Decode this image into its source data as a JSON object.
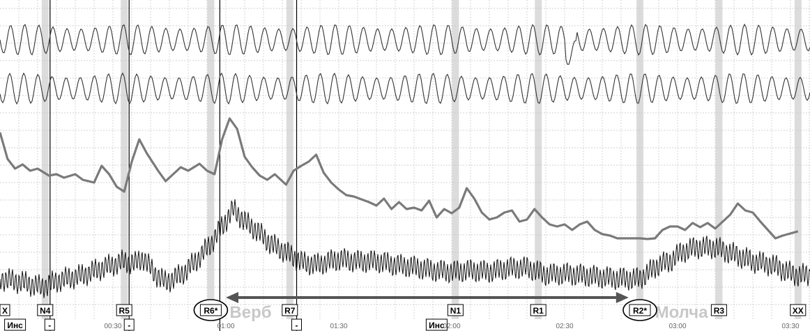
{
  "chart_data": {
    "type": "line",
    "title": "",
    "xlabel": "",
    "ylabel": "",
    "x_range_seconds": [
      0,
      212
    ],
    "time_ticks": [
      "00:30",
      "01:00",
      "01:30",
      "02:00",
      "02:30",
      "03:00",
      "03:30"
    ],
    "time_tick_seconds": [
      30,
      60,
      90,
      120,
      150,
      180,
      210
    ],
    "grid": true,
    "stimuli": [
      {
        "label": "X",
        "t": -1
      },
      {
        "label": "N4",
        "t": 12
      },
      {
        "label": "R5",
        "t": 33
      },
      {
        "label": "R6*",
        "t": 56,
        "circled": true
      },
      {
        "label": "R7",
        "t": 77
      },
      {
        "label": "N1",
        "t": 121
      },
      {
        "label": "R1",
        "t": 143
      },
      {
        "label": "R2*",
        "t": 170,
        "circled": true
      },
      {
        "label": "R3",
        "t": 191
      },
      {
        "label": "XX",
        "t": 212
      }
    ],
    "marker_lines_seconds": [
      13.3,
      34.3,
      58.4,
      78.8
    ],
    "bottom_marks": [
      {
        "label": "Инс",
        "t": 4
      },
      {
        "label": "-",
        "t": 13.2
      },
      {
        "label": "-",
        "t": 34.3
      },
      {
        "label": "-",
        "t": 78.8
      },
      {
        "label": "Инс",
        "t": 116
      }
    ],
    "phases": [
      {
        "label": "Верб",
        "t": 61
      },
      {
        "label": "Молча",
        "t": 174
      }
    ],
    "arrow_seconds": [
      60,
      167
    ],
    "channels": [
      {
        "name": "",
        "kind": "respiration-upper",
        "cycles_per_min": 16
      },
      {
        "name": "",
        "kind": "respiration-lower",
        "cycles_per_min": 16
      },
      {
        "name": "",
        "kind": "electrodermal",
        "points": [
          [
            0,
            190
          ],
          [
            2,
            228
          ],
          [
            4,
            242
          ],
          [
            6,
            236
          ],
          [
            8,
            245
          ],
          [
            10,
            242
          ],
          [
            13,
            252
          ],
          [
            15,
            250
          ],
          [
            17,
            255
          ],
          [
            20,
            250
          ],
          [
            22,
            258
          ],
          [
            25,
            262
          ],
          [
            27,
            238
          ],
          [
            29,
            250
          ],
          [
            31,
            268
          ],
          [
            33,
            275
          ],
          [
            35,
            232
          ],
          [
            37,
            200
          ],
          [
            39,
            220
          ],
          [
            42,
            245
          ],
          [
            44,
            260
          ],
          [
            46,
            250
          ],
          [
            48,
            240
          ],
          [
            50,
            245
          ],
          [
            53,
            235
          ],
          [
            55,
            245
          ],
          [
            57,
            250
          ],
          [
            59,
            200
          ],
          [
            61,
            170
          ],
          [
            63,
            185
          ],
          [
            65,
            225
          ],
          [
            67,
            240
          ],
          [
            69,
            252
          ],
          [
            71,
            258
          ],
          [
            73,
            250
          ],
          [
            75,
            260
          ],
          [
            76,
            265
          ],
          [
            78,
            245
          ],
          [
            80,
            238
          ],
          [
            82,
            232
          ],
          [
            84,
            222
          ],
          [
            86,
            248
          ],
          [
            88,
            262
          ],
          [
            90,
            272
          ],
          [
            92,
            280
          ],
          [
            94,
            282
          ],
          [
            96,
            286
          ],
          [
            98,
            290
          ],
          [
            100,
            295
          ],
          [
            102,
            285
          ],
          [
            104,
            300
          ],
          [
            106,
            290
          ],
          [
            108,
            300
          ],
          [
            110,
            298
          ],
          [
            112,
            302
          ],
          [
            114,
            288
          ],
          [
            116,
            312
          ],
          [
            118,
            300
          ],
          [
            120,
            306
          ],
          [
            122,
            298
          ],
          [
            124,
            270
          ],
          [
            126,
            285
          ],
          [
            128,
            305
          ],
          [
            130,
            315
          ],
          [
            132,
            312
          ],
          [
            134,
            305
          ],
          [
            136,
            302
          ],
          [
            138,
            318
          ],
          [
            140,
            315
          ],
          [
            142,
            300
          ],
          [
            144,
            312
          ],
          [
            146,
            322
          ],
          [
            148,
            325
          ],
          [
            150,
            322
          ],
          [
            152,
            330
          ],
          [
            154,
            322
          ],
          [
            156,
            318
          ],
          [
            158,
            330
          ],
          [
            160,
            336
          ],
          [
            162,
            338
          ],
          [
            164,
            342
          ],
          [
            166,
            342
          ],
          [
            168,
            342
          ],
          [
            170,
            342
          ],
          [
            172,
            343
          ],
          [
            174,
            342
          ],
          [
            176,
            330
          ],
          [
            178,
            325
          ],
          [
            180,
            325
          ],
          [
            182,
            330
          ],
          [
            184,
            320
          ],
          [
            186,
            326
          ],
          [
            188,
            320
          ],
          [
            190,
            328
          ],
          [
            192,
            318
          ],
          [
            194,
            308
          ],
          [
            196,
            292
          ],
          [
            198,
            302
          ],
          [
            200,
            305
          ],
          [
            202,
            318
          ],
          [
            204,
            330
          ],
          [
            206,
            342
          ],
          [
            208,
            338
          ],
          [
            210,
            335
          ],
          [
            212,
            332
          ]
        ]
      },
      {
        "name": "",
        "kind": "plethysmogram",
        "baseline": [
          [
            0,
            400
          ],
          [
            6,
            405
          ],
          [
            11,
            412
          ],
          [
            16,
            402
          ],
          [
            22,
            395
          ],
          [
            27,
            385
          ],
          [
            33,
            375
          ],
          [
            36,
            378
          ],
          [
            38,
            370
          ],
          [
            41,
            392
          ],
          [
            44,
            405
          ],
          [
            48,
            395
          ],
          [
            52,
            375
          ],
          [
            56,
            350
          ],
          [
            59,
            325
          ],
          [
            62,
            300
          ],
          [
            65,
            318
          ],
          [
            68,
            330
          ],
          [
            72,
            350
          ],
          [
            76,
            362
          ],
          [
            80,
            376
          ],
          [
            84,
            380
          ],
          [
            90,
            372
          ],
          [
            95,
            375
          ],
          [
            100,
            375
          ],
          [
            105,
            380
          ],
          [
            110,
            383
          ],
          [
            115,
            388
          ],
          [
            120,
            390
          ],
          [
            125,
            388
          ],
          [
            130,
            390
          ],
          [
            135,
            385
          ],
          [
            140,
            384
          ],
          [
            145,
            394
          ],
          [
            150,
            393
          ],
          [
            155,
            395
          ],
          [
            160,
            398
          ],
          [
            165,
            400
          ],
          [
            170,
            400
          ],
          [
            175,
            380
          ],
          [
            178,
            375
          ],
          [
            181,
            362
          ],
          [
            185,
            355
          ],
          [
            190,
            355
          ],
          [
            195,
            365
          ],
          [
            200,
            375
          ],
          [
            205,
            380
          ],
          [
            210,
            392
          ],
          [
            212,
            395
          ]
        ],
        "cycles_per_min": 68
      }
    ]
  }
}
